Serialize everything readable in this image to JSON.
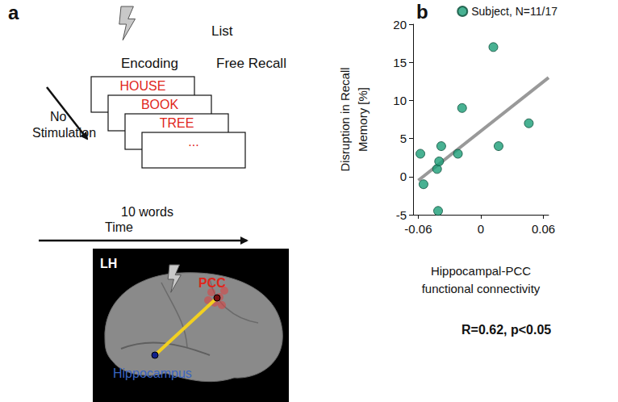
{
  "chart_data": {
    "type": "scatter",
    "panel_label": "b",
    "legend_label": "Subject, N=11/17",
    "x_label": [
      "Hippocampal-PCC",
      "functional connectivity"
    ],
    "y_label": [
      "Disruption in Recall",
      "Memory [%]"
    ],
    "annotation": "R=0.62, p<0.05",
    "x": [
      -0.058,
      -0.055,
      -0.042,
      -0.04,
      -0.038,
      -0.041,
      -0.022,
      -0.018,
      0.012,
      0.017,
      0.046
    ],
    "values": [
      3,
      -1,
      1,
      2,
      4,
      -4.5,
      3,
      9,
      17,
      4,
      7
    ],
    "color": "#1a9e77",
    "marker": "circle",
    "fit_line": {
      "x": [
        -0.06,
        0.065
      ],
      "values": [
        -0.5,
        13
      ],
      "color": "#999999"
    },
    "xlim": [
      -0.065,
      0.065
    ],
    "xticks": [
      -0.06,
      0,
      0.06
    ],
    "ylim": [
      -5,
      20
    ],
    "yticks": [
      -5,
      0,
      5,
      10,
      15,
      20
    ],
    "grid": false,
    "legend": "top-right"
  },
  "diagram": {
    "panel_label": "a",
    "list_label": "List",
    "encoding_label": "Encoding",
    "recall_label": "Free Recall",
    "words": [
      "HOUSE",
      "BOOK",
      "TREE",
      "..."
    ],
    "no_stim_label": [
      "No",
      "Stimulation"
    ],
    "count_label": "10 words",
    "time_label": "Time",
    "brain": {
      "hemisphere": "LH",
      "region_stim": "PCC",
      "region_seed": "Hippocampus"
    }
  }
}
